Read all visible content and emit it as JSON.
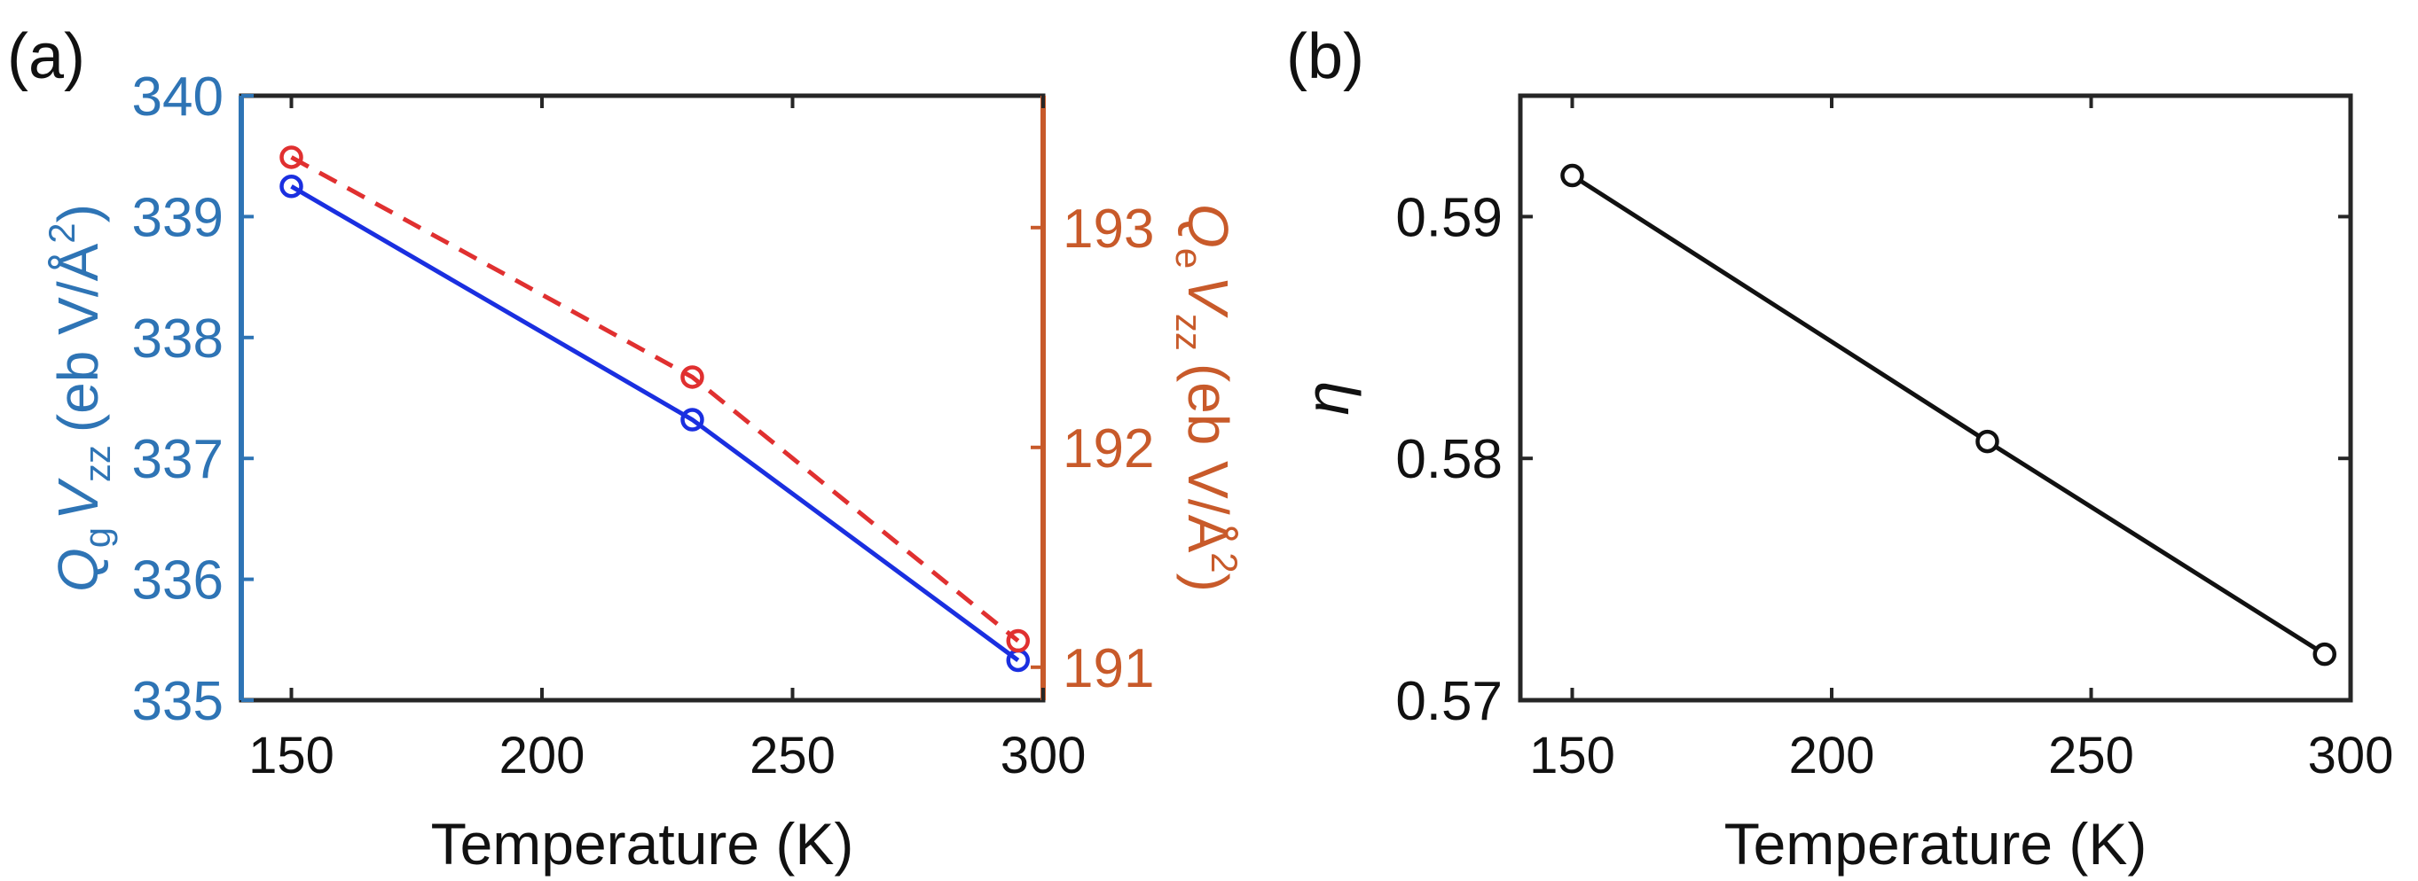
{
  "colors": {
    "left_axis": "#2E74B5",
    "right_axis": "#C85A2A",
    "series_blue": "#1A2FE0",
    "series_red": "#E03030",
    "series_black": "#111111",
    "frame": "#262626"
  },
  "chart_data": [
    {
      "panel_label": "(a)",
      "type": "line",
      "xlabel": "Temperature (K)",
      "xlim": [
        140,
        300
      ],
      "xticks": [
        "150",
        "200",
        "250",
        "300"
      ],
      "ylabel_left": "Q_g V_zz (eb V/Å²)",
      "ylabel_left_parts": {
        "q": "Q",
        "q_sub": "g",
        "v": "V",
        "v_sub": "zz",
        "unit": "(eb V/Å",
        "sup": "2",
        "close": ")"
      },
      "ylim_left": [
        335,
        340
      ],
      "yticks_left": [
        "335",
        "336",
        "337",
        "338",
        "339",
        "340"
      ],
      "ylabel_right": "Q_e V_zz (eb V/Å²)",
      "ylabel_right_parts": {
        "q": "Q",
        "q_sub": "e",
        "v": "V",
        "v_sub": "zz",
        "unit": "(eb V/Å",
        "sup": "2",
        "close": ")"
      },
      "ylim_right": [
        190.85,
        193.6
      ],
      "yticks_right": [
        "191",
        "192",
        "193"
      ],
      "series": [
        {
          "name": "Q_g V_zz",
          "axis": "left",
          "style": "solid",
          "x": [
            150,
            230,
            295
          ],
          "values": [
            339.25,
            337.32,
            335.33
          ]
        },
        {
          "name": "Q_e V_zz",
          "axis": "right",
          "style": "dashed",
          "x": [
            150,
            230,
            295
          ],
          "values": [
            193.32,
            192.32,
            191.12
          ]
        }
      ]
    },
    {
      "panel_label": "(b)",
      "type": "line",
      "xlabel": "Temperature (K)",
      "xlim": [
        140,
        300
      ],
      "xticks": [
        "150",
        "200",
        "250",
        "300"
      ],
      "ylabel": "η",
      "ylim": [
        0.57,
        0.595
      ],
      "yticks": [
        "0.57",
        "0.58",
        "0.59"
      ],
      "series": [
        {
          "name": "eta",
          "style": "solid",
          "x": [
            150,
            230,
            295
          ],
          "values": [
            0.5917,
            0.5807,
            0.5719
          ]
        }
      ]
    }
  ]
}
